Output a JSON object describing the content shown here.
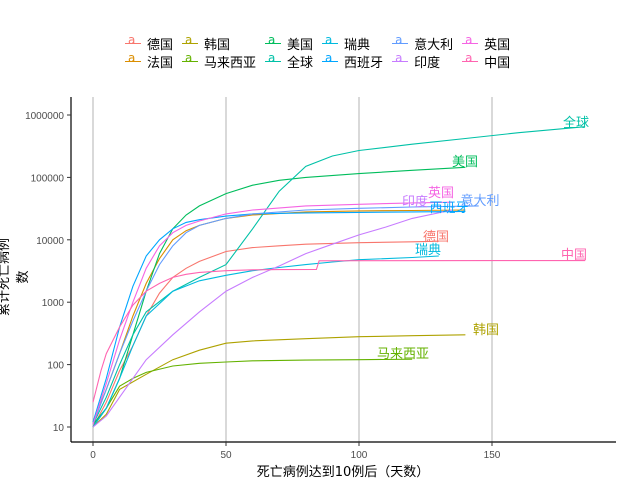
{
  "chart_data": {
    "type": "line",
    "title": "",
    "xlabel": "死亡病例达到10例后（天数）",
    "ylabel": "累计死亡病例数",
    "xlim": [
      -5,
      197
    ],
    "ylim": [
      8,
      1600000
    ],
    "yscale": "log10",
    "x_ticks": [
      0,
      50,
      100,
      150
    ],
    "x_tick_labels": [
      "0",
      "50",
      "100",
      "150"
    ],
    "y_ticks": [
      10,
      100,
      1000,
      10000,
      100000,
      1000000
    ],
    "y_tick_labels": [
      "10",
      "100",
      "1000",
      "10000",
      "100000",
      "1000000"
    ],
    "grid": {
      "vertical_major": true,
      "horizontal": false
    },
    "legend_position": "top",
    "series": [
      {
        "name": "德国",
        "color": "#F8766D",
        "end_label": "德国",
        "x": [
          0,
          5,
          10,
          15,
          20,
          25,
          30,
          35,
          40,
          50,
          60,
          70,
          80,
          100,
          120,
          130
        ],
        "y": [
          10,
          25,
          80,
          200,
          600,
          1400,
          2500,
          3500,
          4500,
          6500,
          7500,
          8000,
          8500,
          9000,
          9300,
          9500
        ]
      },
      {
        "name": "法国",
        "color": "#DB8E00",
        "end_label": "",
        "x": [
          0,
          5,
          10,
          15,
          20,
          25,
          30,
          35,
          40,
          50,
          60,
          80,
          100,
          120,
          140
        ],
        "y": [
          12,
          40,
          150,
          600,
          2000,
          5000,
          10000,
          14000,
          17000,
          22000,
          25000,
          28000,
          29000,
          29500,
          30000
        ]
      },
      {
        "name": "韩国",
        "color": "#AEA200",
        "end_label": "韩国",
        "x": [
          0,
          5,
          10,
          20,
          30,
          40,
          50,
          60,
          80,
          100,
          120,
          140
        ],
        "y": [
          10,
          16,
          40,
          70,
          120,
          170,
          220,
          240,
          260,
          280,
          290,
          300
        ]
      },
      {
        "name": "马来西亚",
        "color": "#64B200",
        "end_label": "马来西亚",
        "x": [
          0,
          5,
          10,
          15,
          20,
          30,
          40,
          50,
          60,
          80,
          100,
          120
        ],
        "y": [
          10,
          20,
          45,
          60,
          75,
          95,
          105,
          110,
          115,
          118,
          120,
          122
        ]
      },
      {
        "name": "美国",
        "color": "#00BD5C",
        "end_label": "美国",
        "x": [
          0,
          5,
          10,
          15,
          20,
          25,
          30,
          35,
          40,
          50,
          60,
          70,
          80,
          100,
          120,
          140
        ],
        "y": [
          11,
          20,
          60,
          300,
          1500,
          6000,
          15000,
          25000,
          35000,
          55000,
          75000,
          90000,
          100000,
          115000,
          130000,
          145000
        ]
      },
      {
        "name": "全球",
        "color": "#00C1A7",
        "end_label": "全球",
        "x": [
          0,
          5,
          10,
          15,
          20,
          30,
          40,
          50,
          60,
          70,
          80,
          90,
          100,
          120,
          140,
          160,
          185
        ],
        "y": [
          11,
          30,
          100,
          300,
          700,
          1500,
          2500,
          4000,
          15000,
          60000,
          150000,
          220000,
          270000,
          340000,
          420000,
          520000,
          650000
        ]
      },
      {
        "name": "瑞典",
        "color": "#00BADE",
        "end_label": "瑞典",
        "x": [
          0,
          5,
          10,
          15,
          20,
          30,
          40,
          50,
          60,
          70,
          80,
          90,
          100,
          120,
          130
        ],
        "y": [
          10,
          20,
          60,
          200,
          600,
          1500,
          2200,
          2700,
          3200,
          3600,
          4000,
          4400,
          4800,
          5200,
          5500
        ]
      },
      {
        "name": "西班牙",
        "color": "#00A6FF",
        "end_label": "西班牙",
        "x": [
          0,
          5,
          10,
          15,
          20,
          25,
          30,
          35,
          40,
          50,
          60,
          80,
          100,
          120,
          140
        ],
        "y": [
          12,
          60,
          400,
          1800,
          5500,
          10000,
          15000,
          19000,
          21000,
          24000,
          26000,
          27000,
          27500,
          28000,
          28500
        ]
      },
      {
        "name": "意大利",
        "color": "#619CFF",
        "end_label": "意大利",
        "x": [
          0,
          5,
          10,
          15,
          20,
          25,
          30,
          35,
          40,
          50,
          60,
          80,
          100,
          120,
          145
        ],
        "y": [
          11,
          40,
          150,
          500,
          1500,
          4000,
          8000,
          13000,
          17000,
          22000,
          26000,
          30000,
          32000,
          33500,
          35000
        ]
      },
      {
        "name": "印度",
        "color": "#C77CFF",
        "end_label": "印度",
        "x": [
          0,
          5,
          10,
          15,
          20,
          30,
          40,
          50,
          60,
          70,
          80,
          90,
          100,
          110,
          120,
          135
        ],
        "y": [
          10,
          15,
          30,
          60,
          120,
          300,
          700,
          1500,
          2500,
          3800,
          6000,
          8500,
          12000,
          16000,
          22000,
          30000
        ]
      },
      {
        "name": "英国",
        "color": "#F564E3",
        "end_label": "英国",
        "x": [
          0,
          5,
          10,
          15,
          20,
          25,
          30,
          35,
          40,
          50,
          60,
          80,
          100,
          120,
          135
        ],
        "y": [
          11,
          50,
          250,
          1000,
          3500,
          8000,
          13000,
          17000,
          20000,
          26000,
          30000,
          35000,
          37000,
          39000,
          40000
        ]
      },
      {
        "name": "中国",
        "color": "#FF64B0",
        "end_label": "中国",
        "x": [
          0,
          3,
          5,
          10,
          15,
          20,
          25,
          30,
          35,
          40,
          50,
          60,
          70,
          84,
          85,
          100,
          150,
          185
        ],
        "y": [
          25,
          80,
          150,
          400,
          900,
          1500,
          2000,
          2500,
          2800,
          3000,
          3200,
          3300,
          3330,
          3340,
          4600,
          4630,
          4640,
          4640
        ]
      }
    ]
  },
  "legend": {
    "items": [
      {
        "label": "德国",
        "color": "#F8766D"
      },
      {
        "label": "法国",
        "color": "#DB8E00"
      },
      {
        "label": "韩国",
        "color": "#AEA200"
      },
      {
        "label": "马来西亚",
        "color": "#64B200"
      },
      {
        "label": "美国",
        "color": "#00BD5C"
      },
      {
        "label": "全球",
        "color": "#00C1A7"
      },
      {
        "label": "瑞典",
        "color": "#00BADE"
      },
      {
        "label": "西班牙",
        "color": "#00A6FF"
      },
      {
        "label": "意大利",
        "color": "#619CFF"
      },
      {
        "label": "印度",
        "color": "#C77CFF"
      },
      {
        "label": "英国",
        "color": "#F564E3"
      },
      {
        "label": "中国",
        "color": "#FF64B0"
      }
    ],
    "key_glyph": "a"
  }
}
